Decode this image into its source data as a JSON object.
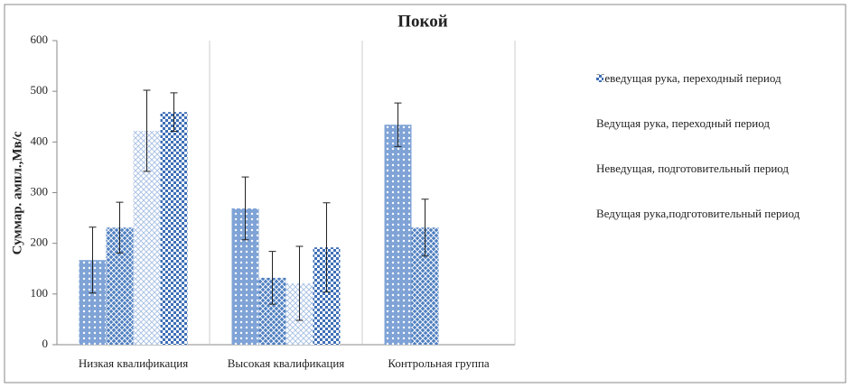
{
  "chart_data": {
    "type": "bar",
    "title": "Покой",
    "y_label": "Суммар. ампл.,Мв/с",
    "categories": [
      "Низкая квалификация",
      "Высокая квалификация",
      "Контрольная группа"
    ],
    "series": [
      {
        "name": "Неведущая рука, переходный период",
        "color": "#7fa3d6",
        "values": [
          167,
          269,
          434
        ],
        "errors": [
          65,
          62,
          43
        ]
      },
      {
        "name": "Ведущая рука, переходный период",
        "color": "#4f7fc0",
        "values": [
          231,
          132,
          231
        ],
        "errors": [
          50,
          52,
          56
        ]
      },
      {
        "name": "Неведущая,  подготовительный период",
        "color": "#a9c1e4",
        "values": [
          422,
          121,
          null
        ],
        "errors": [
          80,
          73,
          null
        ]
      },
      {
        "name": "Ведущая рука,подготовительный период",
        "color": "#3e6fb6",
        "values": [
          459,
          192,
          null
        ],
        "errors": [
          38,
          88,
          null
        ]
      }
    ],
    "ylim": [
      0,
      600
    ],
    "yticks": [
      0,
      100,
      200,
      300,
      400,
      500,
      600
    ],
    "grid": false
  }
}
